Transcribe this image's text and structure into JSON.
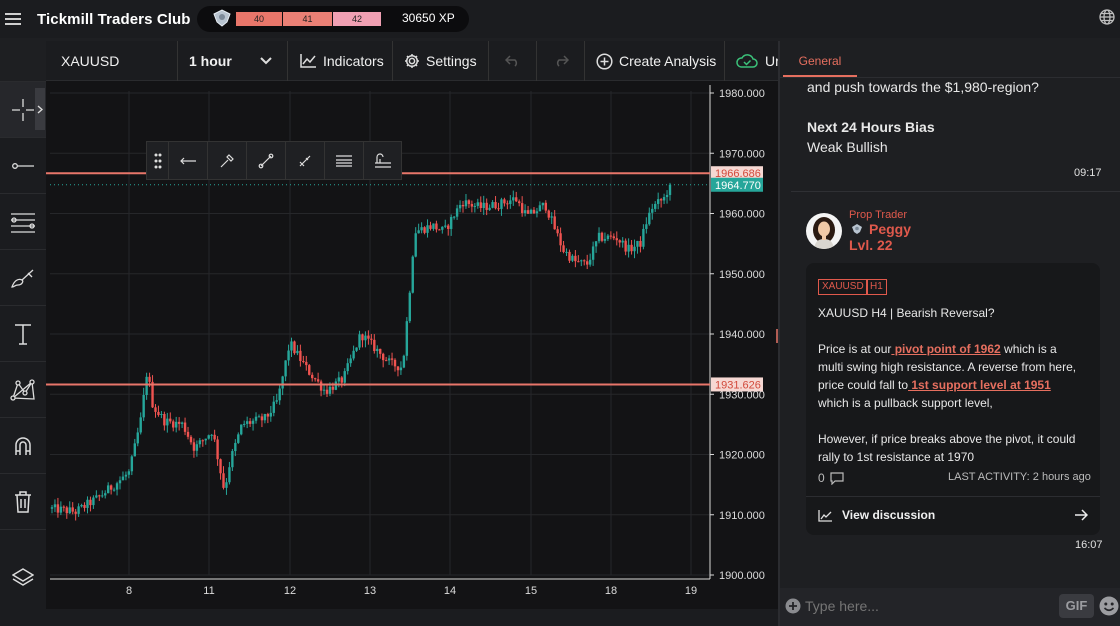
{
  "header": {
    "brand": "Tickmill Traders Club",
    "levels": [
      "40",
      "41",
      "42"
    ],
    "xp": "30650 XP",
    "icons": {
      "menu": "hamburger-icon",
      "globe": "globe-icon",
      "badge": "rank-badge-icon"
    }
  },
  "toolbar": {
    "symbol": "XAUUSD",
    "interval": "1 hour",
    "indicators": "Indicators",
    "settings": "Settings",
    "create_analysis": "Create Analysis",
    "publish": "Ur"
  },
  "left_tools": [
    "crosshair-icon",
    "horizontal-line-icon",
    "parallel-lines-icon",
    "brush-icon",
    "text-icon",
    "pattern-icon",
    "magnet-icon",
    "trash-icon",
    "layers-icon"
  ],
  "draw_tools": [
    "drag-handle-icon",
    "arrow-line-icon",
    "color-picker-icon",
    "line-width-icon",
    "pencil-icon",
    "line-style-icon",
    "settings-icon"
  ],
  "chart_data": {
    "type": "candlestick",
    "symbol": "XAUUSD",
    "interval": "1 hour",
    "y_ticks": [
      "1980.000",
      "1970.000",
      "1960.000",
      "1950.000",
      "1940.000",
      "1930.000",
      "1920.000",
      "1910.000",
      "1900.000"
    ],
    "x_ticks": [
      "8",
      "11",
      "12",
      "13",
      "14",
      "15",
      "18",
      "19"
    ],
    "ylim": [
      1900,
      1980
    ],
    "horizontal_lines": [
      {
        "value": 1966.686,
        "label": "1966.686",
        "color": "#e8766a"
      },
      {
        "value": 1931.626,
        "label": "1931.626",
        "color": "#e8766a"
      }
    ],
    "last_price": {
      "value": 1964.77,
      "label": "1964.770",
      "color": "#26a69a"
    },
    "colors": {
      "up": "#26a69a",
      "down": "#ef5350"
    },
    "path": [
      [
        0,
        1911
      ],
      [
        4,
        1910.5
      ],
      [
        8,
        1913
      ],
      [
        13,
        1917
      ],
      [
        15,
        1926
      ],
      [
        16,
        1934
      ],
      [
        17,
        1928
      ],
      [
        19,
        1925.5
      ],
      [
        22,
        1925
      ],
      [
        24,
        1921
      ],
      [
        27,
        1924
      ],
      [
        29,
        1914
      ],
      [
        30,
        1919
      ],
      [
        32,
        1925
      ],
      [
        36,
        1926
      ],
      [
        38,
        1929
      ],
      [
        40,
        1938.5
      ],
      [
        43,
        1934
      ],
      [
        46,
        1930.5
      ],
      [
        49,
        1932.5
      ],
      [
        52,
        1940
      ],
      [
        55,
        1937
      ],
      [
        57,
        1935
      ],
      [
        59,
        1934.5
      ],
      [
        60,
        1945
      ],
      [
        61,
        1957
      ],
      [
        64,
        1958
      ],
      [
        66,
        1957
      ],
      [
        69,
        1962
      ],
      [
        72,
        1961
      ],
      [
        75,
        1961.5
      ],
      [
        78,
        1962.5
      ],
      [
        80,
        1959.5
      ],
      [
        83,
        1961.5
      ],
      [
        86,
        1954
      ],
      [
        88,
        1952
      ],
      [
        90,
        1951.5
      ],
      [
        92,
        1956
      ],
      [
        95,
        1956
      ],
      [
        97,
        1954
      ],
      [
        99,
        1955
      ],
      [
        100,
        1958.5
      ],
      [
        101,
        1961
      ],
      [
        103,
        1962.5
      ],
      [
        104,
        1964.8
      ]
    ]
  },
  "panel": {
    "tab": "General",
    "msg1": {
      "text": "and push towards the $1,980-region?",
      "bias_title": "Next 24 Hours Bias",
      "bias_value": "Weak Bullish",
      "time": "09:17"
    },
    "post": {
      "role": "Prop Trader",
      "name": "Peggy",
      "level": "Lvl. 22",
      "tags": [
        "XAUUSD",
        "H1"
      ],
      "title": "XAUUSD H4 | Bearish Reversal?",
      "p1_a": "Price is at our",
      "p1_link": " pivot point of 1962",
      "p1_b": " which is a",
      "p2": "multi swing high resistance. A reverse from here,",
      "p3_a": "price could fall to",
      "p3_link": " 1st support level at 1951",
      "p4": "which is a pullback support level,",
      "p5": "However, if price breaks above the pivot, it could",
      "p6": "rally to 1st resistance at 1970",
      "comments": "0",
      "last_activity": "LAST ACTIVITY: 2 hours ago",
      "view": "View discussion",
      "time": "16:07"
    },
    "input_placeholder": "Type here...",
    "gif": "GIF"
  }
}
